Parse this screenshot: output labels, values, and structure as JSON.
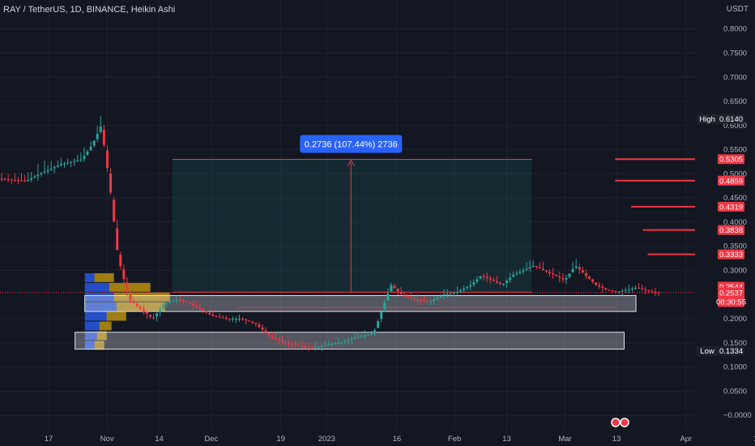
{
  "header": {
    "title": "RAY / TetherUS, 1D, BINANCE, Heikin Ashi",
    "currency": "USDT"
  },
  "chart_data": {
    "type": "candlestick",
    "ylim": [
      -0.03,
      0.86
    ],
    "y_ticks": [
      "0.8000",
      "0.7500",
      "0.7000",
      "0.6500",
      "0.6000",
      "0.5500",
      "0.5000",
      "0.4500",
      "0.4000",
      "0.3500",
      "0.3000",
      "0.2000",
      "0.1500",
      "0.1000",
      "0.0500",
      "−0.0000"
    ],
    "y_tick_values": [
      0.8,
      0.75,
      0.7,
      0.65,
      0.6,
      0.55,
      0.5,
      0.45,
      0.4,
      0.35,
      0.3,
      0.2,
      0.15,
      0.1,
      0.05,
      0.0
    ],
    "x_ticks": [
      {
        "label": "17",
        "x": 0.07
      },
      {
        "label": "Nov",
        "x": 0.154
      },
      {
        "label": "14",
        "x": 0.229
      },
      {
        "label": "Dec",
        "x": 0.304
      },
      {
        "label": "19",
        "x": 0.404
      },
      {
        "label": "2023",
        "x": 0.47
      },
      {
        "label": "16",
        "x": 0.571
      },
      {
        "label": "Feb",
        "x": 0.654
      },
      {
        "label": "13",
        "x": 0.729
      },
      {
        "label": "Mar",
        "x": 0.813
      },
      {
        "label": "13",
        "x": 0.887
      },
      {
        "label": "Apr",
        "x": 0.987
      },
      {
        "label": "1",
        "x": 1.087
      }
    ],
    "price_path": [
      [
        0.0,
        0.49
      ],
      [
        0.04,
        0.485
      ],
      [
        0.06,
        0.5
      ],
      [
        0.09,
        0.52
      ],
      [
        0.12,
        0.53
      ],
      [
        0.135,
        0.56
      ],
      [
        0.148,
        0.6
      ],
      [
        0.16,
        0.48
      ],
      [
        0.172,
        0.33
      ],
      [
        0.188,
        0.24
      ],
      [
        0.205,
        0.22
      ],
      [
        0.222,
        0.2
      ],
      [
        0.238,
        0.23
      ],
      [
        0.255,
        0.24
      ],
      [
        0.27,
        0.235
      ],
      [
        0.29,
        0.22
      ],
      [
        0.31,
        0.205
      ],
      [
        0.33,
        0.2
      ],
      [
        0.35,
        0.2
      ],
      [
        0.37,
        0.19
      ],
      [
        0.39,
        0.165
      ],
      [
        0.41,
        0.15
      ],
      [
        0.43,
        0.145
      ],
      [
        0.45,
        0.14
      ],
      [
        0.47,
        0.145
      ],
      [
        0.49,
        0.15
      ],
      [
        0.51,
        0.16
      ],
      [
        0.54,
        0.17
      ],
      [
        0.555,
        0.23
      ],
      [
        0.565,
        0.27
      ],
      [
        0.58,
        0.25
      ],
      [
        0.6,
        0.24
      ],
      [
        0.62,
        0.235
      ],
      [
        0.64,
        0.25
      ],
      [
        0.66,
        0.255
      ],
      [
        0.68,
        0.27
      ],
      [
        0.695,
        0.29
      ],
      [
        0.71,
        0.28
      ],
      [
        0.725,
        0.27
      ],
      [
        0.74,
        0.29
      ],
      [
        0.755,
        0.3
      ],
      [
        0.77,
        0.31
      ],
      [
        0.785,
        0.3
      ],
      [
        0.8,
        0.29
      ],
      [
        0.815,
        0.28
      ],
      [
        0.83,
        0.31
      ],
      [
        0.845,
        0.29
      ],
      [
        0.86,
        0.27
      ],
      [
        0.875,
        0.26
      ],
      [
        0.89,
        0.255
      ],
      [
        0.905,
        0.26
      ],
      [
        0.92,
        0.265
      ],
      [
        0.94,
        0.255
      ],
      [
        0.95,
        0.254
      ]
    ],
    "labels": {
      "high": {
        "label": "High",
        "value": "0.6140"
      },
      "low": {
        "label": "Low",
        "value": "0.1334"
      },
      "current": {
        "value": "0.2544",
        "countdown_price": "0.2537",
        "countdown": "08:30:55"
      },
      "levels": [
        "0.5305",
        "0.4859",
        "0.4319",
        "0.3838",
        "0.3333"
      ]
    },
    "level_values": [
      0.5305,
      0.4859,
      0.4319,
      0.3838,
      0.3333
    ],
    "level_starts": [
      0.885,
      0.885,
      0.908,
      0.925,
      0.932
    ],
    "measure": {
      "text": "0.2736 (107.44%) 2736",
      "from": 0.255,
      "to": 0.53
    },
    "zones": [
      {
        "top": 0.248,
        "bottom": 0.215
      },
      {
        "top": 0.172,
        "bottom": 0.137
      }
    ],
    "extra_line": 0.223,
    "volume_profile": [
      {
        "price": 0.285,
        "blue": 0.04,
        "orange": 0.08
      },
      {
        "price": 0.265,
        "blue": 0.1,
        "orange": 0.17
      },
      {
        "price": 0.245,
        "blue": 0.12,
        "orange": 0.23
      },
      {
        "price": 0.225,
        "blue": 0.13,
        "orange": 0.2
      },
      {
        "price": 0.205,
        "blue": 0.09,
        "orange": 0.08
      },
      {
        "price": 0.185,
        "blue": 0.06,
        "orange": 0.05
      },
      {
        "price": 0.165,
        "blue": 0.05,
        "orange": 0.04
      },
      {
        "price": 0.145,
        "blue": 0.04,
        "orange": 0.04
      }
    ]
  }
}
